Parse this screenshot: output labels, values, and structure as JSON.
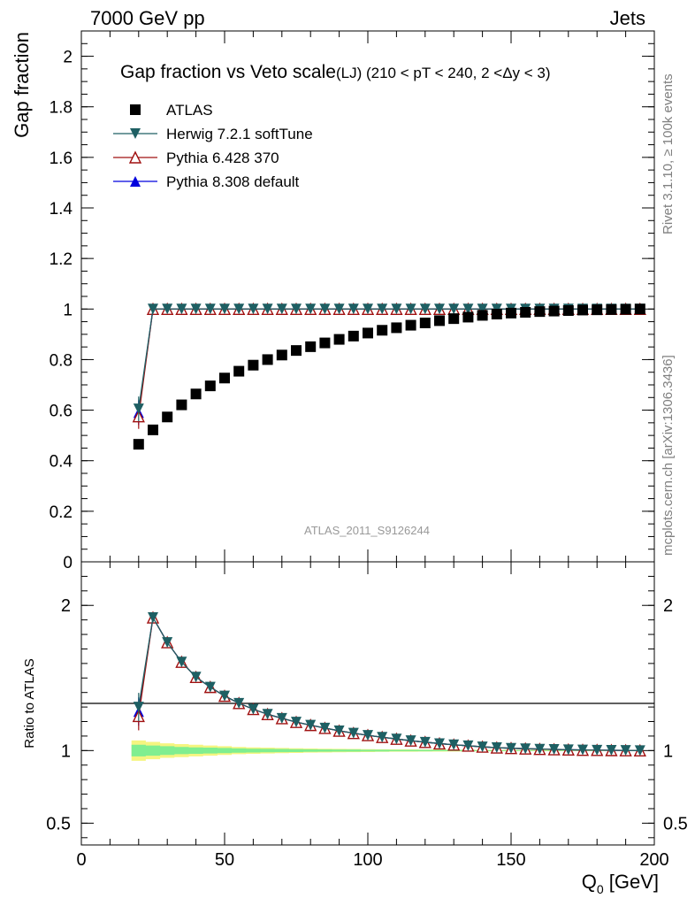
{
  "header": {
    "left": "7000 GeV pp",
    "right": "Jets"
  },
  "side_labels": {
    "rivet": "Rivet 3.1.10, ≥ 100k events",
    "mcplots": "mcplots.cern.ch [arXiv:1306.3436]"
  },
  "chart_data": [
    {
      "type": "scatter",
      "panel": "main",
      "title": "Gap fraction vs Veto scale",
      "subtitle": "(LJ) (210 < pT < 240, 2 <Δy < 3)",
      "ylabel": "Gap fraction",
      "xlabel": "",
      "xlim": [
        0,
        200
      ],
      "ylim": [
        0,
        2.1
      ],
      "x_ticks": [
        0,
        50,
        100,
        150,
        200
      ],
      "y_ticks": [
        0,
        0.2,
        0.4,
        0.6,
        0.8,
        1,
        1.2,
        1.4,
        1.6,
        1.8,
        2
      ],
      "y_tick_labels": [
        "0",
        "0.2",
        "0.4",
        "0.6",
        "0.8",
        "1",
        "1.2",
        "1.4",
        "1.6",
        "1.8",
        "2"
      ],
      "watermark": "ATLAS_2011_S9126244",
      "legend_position": "top-left",
      "x": [
        20,
        25,
        30,
        35,
        40,
        45,
        50,
        55,
        60,
        65,
        70,
        75,
        80,
        85,
        90,
        95,
        100,
        105,
        110,
        115,
        120,
        125,
        130,
        135,
        140,
        145,
        150,
        155,
        160,
        165,
        170,
        175,
        180,
        185,
        190,
        195
      ],
      "series": [
        {
          "name": "ATLAS",
          "marker": "square-filled",
          "color": "#000000",
          "line": false,
          "values": [
            0.465,
            0.522,
            0.573,
            0.621,
            0.664,
            0.696,
            0.727,
            0.754,
            0.778,
            0.8,
            0.818,
            0.836,
            0.851,
            0.866,
            0.88,
            0.893,
            0.905,
            0.916,
            0.926,
            0.936,
            0.945,
            0.954,
            0.962,
            0.968,
            0.975,
            0.98,
            0.984,
            0.987,
            0.99,
            0.992,
            0.994,
            0.996,
            0.997,
            0.998,
            0.999,
            1.0
          ]
        },
        {
          "name": "Herwig 7.2.1 softTune",
          "marker": "triangle-down-filled",
          "color": "#1e5f63",
          "line": true,
          "values": [
            0.605,
            1.0,
            1.0,
            1.0,
            1.0,
            1.0,
            1.0,
            1.0,
            1.0,
            1.0,
            1.0,
            1.0,
            1.0,
            1.0,
            1.0,
            1.0,
            1.0,
            1.0,
            1.0,
            1.0,
            1.0,
            1.0,
            1.0,
            1.0,
            1.0,
            1.0,
            1.0,
            1.0,
            1.0,
            1.0,
            1.0,
            1.0,
            1.0,
            1.0,
            1.0,
            1.0
          ]
        },
        {
          "name": "Pythia 6.428 370",
          "marker": "triangle-up-open",
          "color": "#a01010",
          "line": true,
          "values": [
            0.575,
            1.0,
            1.0,
            1.0,
            1.0,
            1.0,
            1.0,
            1.0,
            1.0,
            1.0,
            1.0,
            1.0,
            1.0,
            1.0,
            1.0,
            1.0,
            1.0,
            1.0,
            1.0,
            1.0,
            1.0,
            1.0,
            1.0,
            1.0,
            1.0,
            1.0,
            1.0,
            1.0,
            1.0,
            1.0,
            1.0,
            1.0,
            1.0,
            1.0,
            1.0,
            1.0
          ]
        },
        {
          "name": "Pythia 8.308 default",
          "marker": "triangle-up-filled",
          "color": "#0000dd",
          "line": true,
          "values": [
            0.59,
            1.0,
            1.0,
            1.0,
            1.0,
            1.0,
            1.0,
            1.0,
            1.0,
            1.0,
            1.0,
            1.0,
            1.0,
            1.0,
            1.0,
            1.0,
            1.0,
            1.0,
            1.0,
            1.0,
            1.0,
            1.0,
            1.0,
            1.0,
            1.0,
            1.0,
            1.0,
            1.0,
            1.0,
            1.0,
            1.0,
            1.0,
            1.0,
            1.0,
            1.0,
            1.0
          ]
        }
      ]
    },
    {
      "type": "line",
      "panel": "ratio",
      "ylabel": "Ratio to ATLAS",
      "xlabel": "Q0 [GeV]",
      "xlim": [
        0,
        200
      ],
      "ylim": [
        0.35,
        2.3
      ],
      "x_ticks": [
        0,
        50,
        100,
        150,
        200
      ],
      "x_tick_labels": [
        "0",
        "50",
        "100",
        "150",
        "200"
      ],
      "y_ticks": [
        0.5,
        1,
        2
      ],
      "y_tick_labels": [
        "0.5",
        "1",
        "2"
      ],
      "x": [
        20,
        25,
        30,
        35,
        40,
        45,
        50,
        55,
        60,
        65,
        70,
        75,
        80,
        85,
        90,
        95,
        100,
        105,
        110,
        115,
        120,
        125,
        130,
        135,
        140,
        145,
        150,
        155,
        160,
        165,
        170,
        175,
        180,
        185,
        190,
        195
      ],
      "band_colors": {
        "outer": "#f5f580",
        "inner": "#80ee90"
      },
      "band_outer": [
        0.07,
        0.06,
        0.05,
        0.045,
        0.04,
        0.035,
        0.03,
        0.025,
        0.022,
        0.02,
        0.018,
        0.016,
        0.014,
        0.013,
        0.012,
        0.011,
        0.01,
        0.009,
        0.008,
        0.008,
        0.007,
        0.007,
        0.006,
        0.006,
        0.005,
        0.005,
        0.005,
        0.004,
        0.004,
        0.004,
        0.003,
        0.003,
        0.003,
        0.003,
        0.002,
        0.002
      ],
      "band_inner": [
        0.04,
        0.035,
        0.03,
        0.025,
        0.022,
        0.02,
        0.018,
        0.015,
        0.013,
        0.012,
        0.011,
        0.01,
        0.009,
        0.008,
        0.007,
        0.007,
        0.006,
        0.006,
        0.005,
        0.005,
        0.005,
        0.004,
        0.004,
        0.004,
        0.003,
        0.003,
        0.003,
        0.003,
        0.002,
        0.002,
        0.002,
        0.002,
        0.002,
        0.002,
        0.001,
        0.001
      ],
      "series": [
        {
          "name": "Herwig 7.2.1 softTune",
          "marker": "triangle-down-filled",
          "color": "#1e5f63",
          "values": [
            1.3,
            1.916,
            1.745,
            1.61,
            1.506,
            1.437,
            1.376,
            1.326,
            1.285,
            1.25,
            1.222,
            1.196,
            1.175,
            1.155,
            1.136,
            1.12,
            1.105,
            1.092,
            1.08,
            1.068,
            1.058,
            1.048,
            1.04,
            1.033,
            1.026,
            1.02,
            1.016,
            1.013,
            1.01,
            1.008,
            1.006,
            1.004,
            1.003,
            1.002,
            1.001,
            1.0
          ]
        },
        {
          "name": "Pythia 6.428 370",
          "marker": "triangle-up-open",
          "color": "#a01010",
          "values": [
            1.237,
            1.916,
            1.745,
            1.61,
            1.506,
            1.437,
            1.376,
            1.326,
            1.285,
            1.25,
            1.222,
            1.196,
            1.175,
            1.155,
            1.136,
            1.12,
            1.105,
            1.092,
            1.08,
            1.068,
            1.058,
            1.048,
            1.04,
            1.033,
            1.026,
            1.02,
            1.016,
            1.013,
            1.01,
            1.008,
            1.006,
            1.004,
            1.003,
            1.002,
            1.001,
            1.0
          ]
        },
        {
          "name": "Pythia 8.308 default",
          "marker": "triangle-up-filled",
          "color": "#0000dd",
          "values": [
            1.269,
            1.916,
            1.745,
            1.61,
            1.506,
            1.437,
            1.376,
            1.326,
            1.285,
            1.25,
            1.222,
            1.196,
            1.175,
            1.155,
            1.136,
            1.12,
            1.105,
            1.092,
            1.08,
            1.068,
            1.058,
            1.048,
            1.04,
            1.033,
            1.026,
            1.02,
            1.016,
            1.013,
            1.01,
            1.008,
            1.006,
            1.004,
            1.003,
            1.002,
            1.001,
            1.0
          ]
        }
      ]
    }
  ]
}
